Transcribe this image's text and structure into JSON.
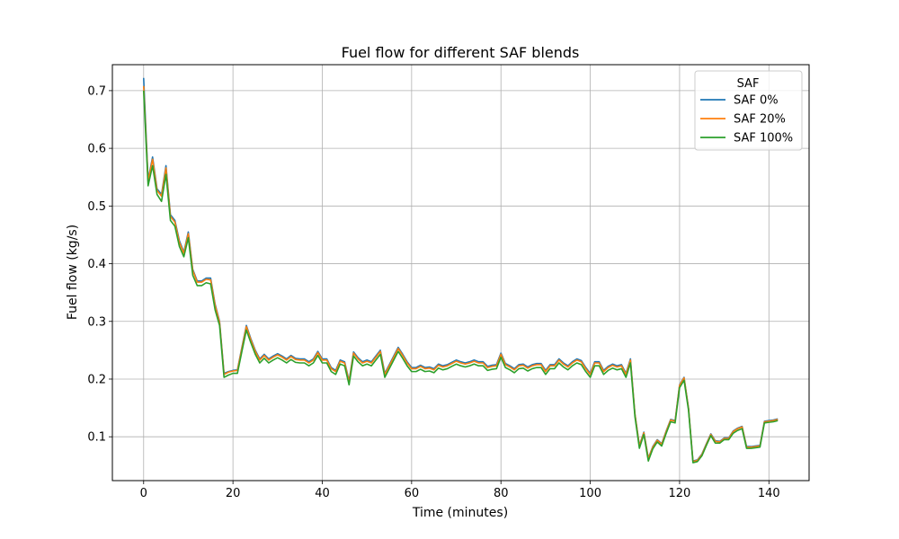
{
  "chart_data": {
    "type": "line",
    "title": "Fuel flow for different SAF blends",
    "xlabel": "Time (minutes)",
    "ylabel": "Fuel flow (kg/s)",
    "xlim": [
      -7,
      149
    ],
    "ylim": [
      0.024,
      0.745
    ],
    "xticks": [
      0,
      20,
      40,
      60,
      80,
      100,
      120,
      140
    ],
    "yticks": [
      0.1,
      0.2,
      0.3,
      0.4,
      0.5,
      0.6,
      0.7
    ],
    "xtick_labels": [
      "0",
      "20",
      "40",
      "60",
      "80",
      "100",
      "120",
      "140"
    ],
    "ytick_labels": [
      "0.1",
      "0.2",
      "0.3",
      "0.4",
      "0.5",
      "0.6",
      "0.7"
    ],
    "grid": true,
    "legend": {
      "title": "SAF",
      "placement": "top-right"
    },
    "x": [
      0,
      1,
      2,
      3,
      4,
      5,
      6,
      7,
      8,
      9,
      10,
      11,
      12,
      13,
      14,
      15,
      16,
      17,
      18,
      19,
      20,
      21,
      22,
      23,
      24,
      25,
      26,
      27,
      28,
      29,
      30,
      31,
      32,
      33,
      34,
      35,
      36,
      37,
      38,
      39,
      40,
      41,
      42,
      43,
      44,
      45,
      46,
      47,
      48,
      49,
      50,
      51,
      52,
      53,
      54,
      55,
      56,
      57,
      58,
      59,
      60,
      61,
      62,
      63,
      64,
      65,
      66,
      67,
      68,
      69,
      70,
      71,
      72,
      73,
      74,
      75,
      76,
      77,
      78,
      79,
      80,
      81,
      82,
      83,
      84,
      85,
      86,
      87,
      88,
      89,
      90,
      91,
      92,
      93,
      94,
      95,
      96,
      97,
      98,
      99,
      100,
      101,
      102,
      103,
      104,
      105,
      106,
      107,
      108,
      109,
      110,
      111,
      112,
      113,
      114,
      115,
      116,
      117,
      118,
      119,
      120,
      121,
      122,
      123,
      124,
      125,
      126,
      127,
      128,
      129,
      130,
      131,
      132,
      133,
      134,
      135,
      136,
      137,
      138,
      139,
      140,
      141,
      142
    ],
    "series": [
      {
        "name": "SAF 0%",
        "color": "#1f77b4",
        "values": [
          0.722,
          0.545,
          0.585,
          0.53,
          0.52,
          0.57,
          0.485,
          0.475,
          0.44,
          0.42,
          0.455,
          0.39,
          0.37,
          0.37,
          0.375,
          0.375,
          0.33,
          0.3,
          0.21,
          0.213,
          0.215,
          0.216,
          0.255,
          0.293,
          0.27,
          0.25,
          0.235,
          0.243,
          0.235,
          0.24,
          0.244,
          0.24,
          0.235,
          0.241,
          0.236,
          0.235,
          0.235,
          0.23,
          0.235,
          0.248,
          0.235,
          0.235,
          0.22,
          0.215,
          0.233,
          0.23,
          0.197,
          0.247,
          0.237,
          0.23,
          0.233,
          0.23,
          0.24,
          0.25,
          0.21,
          0.225,
          0.24,
          0.255,
          0.243,
          0.23,
          0.22,
          0.22,
          0.224,
          0.22,
          0.221,
          0.218,
          0.226,
          0.223,
          0.225,
          0.229,
          0.233,
          0.23,
          0.228,
          0.23,
          0.233,
          0.23,
          0.23,
          0.222,
          0.224,
          0.225,
          0.245,
          0.227,
          0.223,
          0.218,
          0.225,
          0.226,
          0.221,
          0.225,
          0.227,
          0.227,
          0.215,
          0.225,
          0.225,
          0.235,
          0.228,
          0.223,
          0.23,
          0.235,
          0.232,
          0.22,
          0.21,
          0.23,
          0.23,
          0.215,
          0.222,
          0.226,
          0.223,
          0.225,
          0.21,
          0.235,
          0.14,
          0.085,
          0.108,
          0.063,
          0.083,
          0.095,
          0.088,
          0.11,
          0.13,
          0.128,
          0.19,
          0.203,
          0.15,
          0.058,
          0.06,
          0.07,
          0.088,
          0.105,
          0.093,
          0.092,
          0.098,
          0.098,
          0.11,
          0.115,
          0.118,
          0.083,
          0.083,
          0.084,
          0.085,
          0.127,
          0.128,
          0.129,
          0.131
        ]
      },
      {
        "name": "SAF 20%",
        "color": "#ff7f0e",
        "values": [
          0.708,
          0.543,
          0.581,
          0.527,
          0.517,
          0.566,
          0.482,
          0.472,
          0.437,
          0.418,
          0.452,
          0.388,
          0.368,
          0.368,
          0.373,
          0.372,
          0.328,
          0.298,
          0.208,
          0.212,
          0.214,
          0.215,
          0.253,
          0.291,
          0.268,
          0.248,
          0.233,
          0.241,
          0.233,
          0.238,
          0.242,
          0.238,
          0.233,
          0.239,
          0.234,
          0.233,
          0.233,
          0.228,
          0.233,
          0.246,
          0.233,
          0.233,
          0.218,
          0.213,
          0.231,
          0.228,
          0.195,
          0.245,
          0.235,
          0.228,
          0.231,
          0.228,
          0.238,
          0.248,
          0.208,
          0.223,
          0.238,
          0.253,
          0.241,
          0.228,
          0.218,
          0.218,
          0.222,
          0.218,
          0.219,
          0.216,
          0.224,
          0.221,
          0.223,
          0.227,
          0.231,
          0.228,
          0.226,
          0.228,
          0.231,
          0.228,
          0.228,
          0.22,
          0.222,
          0.223,
          0.243,
          0.225,
          0.221,
          0.216,
          0.223,
          0.224,
          0.219,
          0.223,
          0.225,
          0.225,
          0.213,
          0.223,
          0.223,
          0.233,
          0.226,
          0.221,
          0.228,
          0.233,
          0.23,
          0.218,
          0.208,
          0.228,
          0.228,
          0.213,
          0.22,
          0.224,
          0.221,
          0.223,
          0.208,
          0.233,
          0.139,
          0.084,
          0.107,
          0.062,
          0.082,
          0.094,
          0.087,
          0.109,
          0.129,
          0.127,
          0.189,
          0.202,
          0.149,
          0.057,
          0.059,
          0.069,
          0.087,
          0.104,
          0.092,
          0.091,
          0.097,
          0.097,
          0.109,
          0.114,
          0.117,
          0.082,
          0.082,
          0.083,
          0.084,
          0.126,
          0.127,
          0.128,
          0.13
        ]
      },
      {
        "name": "SAF 100%",
        "color": "#2ca02c",
        "values": [
          0.7,
          0.535,
          0.57,
          0.52,
          0.508,
          0.555,
          0.475,
          0.465,
          0.43,
          0.412,
          0.445,
          0.38,
          0.362,
          0.362,
          0.367,
          0.365,
          0.32,
          0.293,
          0.203,
          0.207,
          0.21,
          0.21,
          0.248,
          0.285,
          0.263,
          0.243,
          0.228,
          0.236,
          0.228,
          0.233,
          0.237,
          0.233,
          0.228,
          0.234,
          0.229,
          0.228,
          0.228,
          0.223,
          0.228,
          0.241,
          0.228,
          0.228,
          0.213,
          0.208,
          0.226,
          0.223,
          0.19,
          0.24,
          0.23,
          0.223,
          0.226,
          0.223,
          0.233,
          0.243,
          0.203,
          0.218,
          0.233,
          0.248,
          0.236,
          0.223,
          0.213,
          0.213,
          0.217,
          0.213,
          0.214,
          0.211,
          0.219,
          0.216,
          0.218,
          0.222,
          0.226,
          0.223,
          0.221,
          0.223,
          0.226,
          0.223,
          0.223,
          0.215,
          0.217,
          0.218,
          0.238,
          0.22,
          0.216,
          0.211,
          0.218,
          0.219,
          0.214,
          0.218,
          0.22,
          0.22,
          0.208,
          0.218,
          0.218,
          0.228,
          0.221,
          0.216,
          0.223,
          0.228,
          0.225,
          0.213,
          0.203,
          0.223,
          0.223,
          0.208,
          0.215,
          0.219,
          0.216,
          0.218,
          0.203,
          0.228,
          0.135,
          0.08,
          0.104,
          0.058,
          0.079,
          0.091,
          0.084,
          0.106,
          0.126,
          0.124,
          0.185,
          0.198,
          0.146,
          0.055,
          0.057,
          0.067,
          0.085,
          0.102,
          0.089,
          0.089,
          0.095,
          0.095,
          0.106,
          0.111,
          0.114,
          0.08,
          0.08,
          0.081,
          0.082,
          0.124,
          0.125,
          0.126,
          0.128
        ]
      }
    ]
  }
}
